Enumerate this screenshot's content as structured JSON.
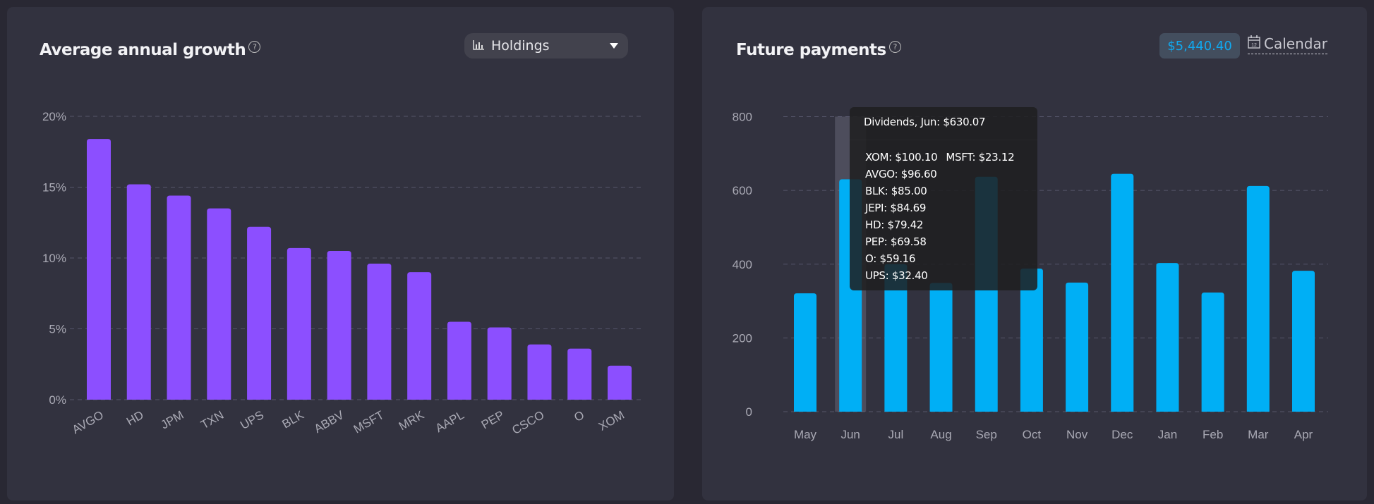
{
  "left_panel": {
    "title": "Average annual growth",
    "help": "?",
    "dropdown": {
      "icon": "bar-chart-icon",
      "selected": "Holdings"
    }
  },
  "right_panel": {
    "title": "Future payments",
    "help": "?",
    "total_badge": "$5,440.40",
    "calendar_label": "Calendar",
    "calendar_icon_text": "12",
    "tooltip": {
      "header": "Dividends, Jun: $630.07",
      "first_row": [
        "XOM: $100.10",
        "MSFT: $23.12"
      ],
      "rows": [
        "AVGO: $96.60",
        "BLK: $85.00",
        "JEPI: $84.69",
        "HD: $79.42",
        "PEP: $69.58",
        "O: $59.16",
        "UPS: $32.40"
      ]
    }
  },
  "colors": {
    "background": "#292833",
    "panel": "#32323f",
    "growth_bar": "#8c4fff",
    "payment_bar": "#00aff5",
    "grid": "#55556a"
  },
  "chart_data": [
    {
      "type": "bar",
      "title": "Average annual growth",
      "categories": [
        "AVGO",
        "HD",
        "JPM",
        "TXN",
        "UPS",
        "BLK",
        "ABBV",
        "MSFT",
        "MRK",
        "AAPL",
        "PEP",
        "CSCO",
        "O",
        "XOM"
      ],
      "values": [
        18.4,
        15.2,
        14.4,
        13.5,
        12.2,
        10.7,
        10.5,
        9.6,
        9.0,
        5.5,
        5.1,
        3.9,
        3.6,
        2.4
      ],
      "ylim": [
        0,
        20
      ],
      "yticks": [
        "0%",
        "5%",
        "10%",
        "15%",
        "20%"
      ],
      "ytick_values": [
        0,
        5,
        10,
        15,
        20
      ],
      "xlabel": "",
      "ylabel": "",
      "grid": true
    },
    {
      "type": "bar",
      "title": "Future payments",
      "categories": [
        "May",
        "Jun",
        "Jul",
        "Aug",
        "Sep",
        "Oct",
        "Nov",
        "Dec",
        "Jan",
        "Feb",
        "Mar",
        "Apr"
      ],
      "values": [
        321,
        630.07,
        400,
        349,
        637,
        388,
        350,
        645,
        403,
        323,
        612,
        382
      ],
      "ylim": [
        0,
        800
      ],
      "yticks": [
        "0",
        "200",
        "400",
        "600",
        "800"
      ],
      "ytick_values": [
        0,
        200,
        400,
        600,
        800
      ],
      "highlighted": "Jun",
      "xlabel": "",
      "ylabel": "",
      "grid": true
    }
  ]
}
